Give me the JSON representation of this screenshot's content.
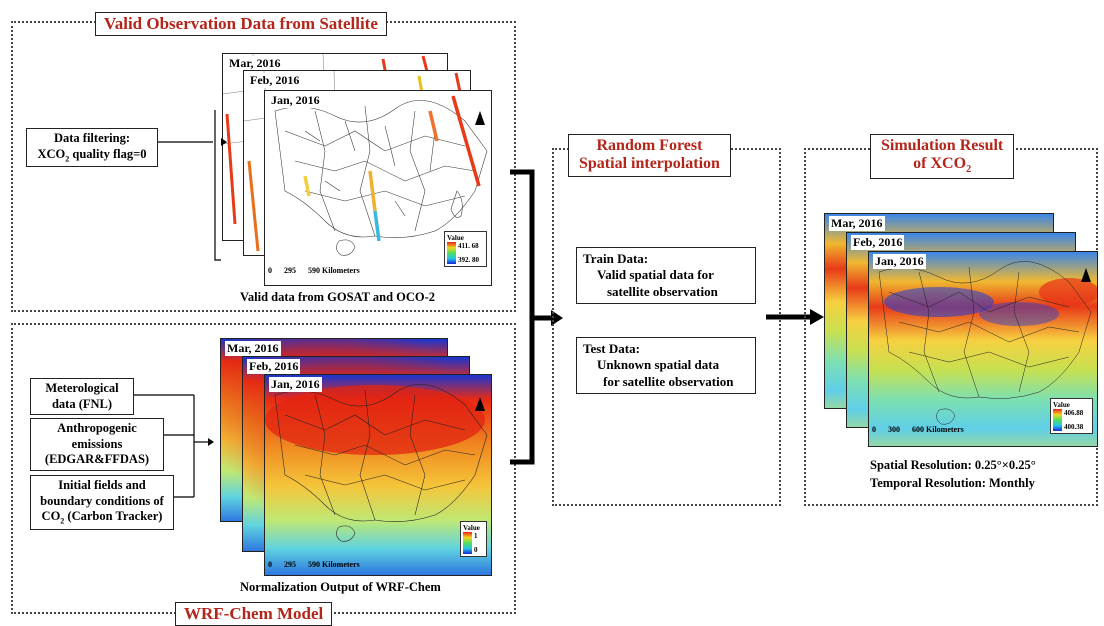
{
  "top_panel": {
    "title": "Valid Observation Data from Satellite",
    "filter_box": {
      "line1": "Data filtering:",
      "line2_prefix": "XCO",
      "line2_sub": "2",
      "line2_suffix": " quality flag=0"
    },
    "caption": "Valid data from GOSAT and OCO-2",
    "maps": [
      {
        "label": "Mar, 2016"
      },
      {
        "label": "Feb, 2016"
      },
      {
        "label": "Jan, 2016"
      }
    ],
    "legend": {
      "title": "Value",
      "max": "411. 68",
      "min": "392. 80"
    },
    "scale_text": "0      295      590 Kilometers"
  },
  "bottom_panel": {
    "title": "WRF-Chem Model",
    "inputs": [
      {
        "line1": "Meterological",
        "line2": "data (FNL)"
      },
      {
        "line1": "Anthropogenic",
        "line2": "emissions",
        "line3": "(EDGAR&FFDAS)"
      },
      {
        "line1": "Initial fields and",
        "line2": "boundary conditions of",
        "line3_prefix": "CO",
        "line3_sub": "2",
        "line3_suffix": " (Carbon Tracker)"
      }
    ],
    "caption": "Normalization Output of WRF-Chem",
    "maps": [
      {
        "label": "Mar, 2016"
      },
      {
        "label": "Feb, 2016"
      },
      {
        "label": "Jan, 2016"
      }
    ],
    "legend": {
      "title": "Value",
      "max": "1",
      "min": "0"
    },
    "scale_text": "0      295      590 Kilometers"
  },
  "middle_panel": {
    "title_line1": "Random Forest",
    "title_line2": "Spatial interpolation",
    "train": {
      "heading": "Train Data:",
      "line1": "Valid spatial data for",
      "line2": "satellite observation"
    },
    "test": {
      "heading": "Test Data:",
      "line1": "Unknown spatial data",
      "line2": "for satellite observation"
    }
  },
  "right_panel": {
    "title_line1": "Simulation Result",
    "title_line2_prefix": "of XCO",
    "title_line2_sub": "2",
    "maps": [
      {
        "label": "Mar, 2016"
      },
      {
        "label": "Feb, 2016"
      },
      {
        "label": "Jan, 2016"
      }
    ],
    "legend": {
      "title": "Value",
      "max": "406.88",
      "min": "400.38"
    },
    "scale_text": "0      300      600 Kilometers",
    "caption1": "Spatial Resolution: 0.25°×0.25°",
    "caption2": "Temporal Resolution: Monthly"
  },
  "colors": {
    "title_red": "#b4251a",
    "border": "#444444"
  }
}
